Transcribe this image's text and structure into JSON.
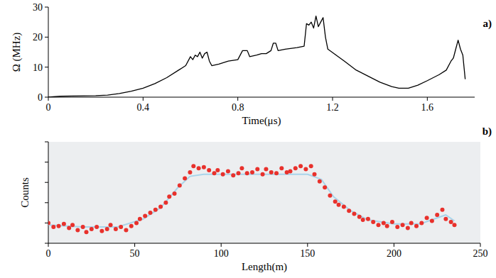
{
  "chart_data": [
    {
      "type": "line",
      "title": "a)",
      "x_label": "Time(μs)",
      "y_label": "Ω (MHz)",
      "x": [
        0,
        0.05,
        0.1,
        0.2,
        0.25,
        0.3,
        0.35,
        0.4,
        0.45,
        0.5,
        0.55,
        0.58,
        0.6,
        0.61,
        0.62,
        0.63,
        0.64,
        0.65,
        0.66,
        0.67,
        0.68,
        0.69,
        0.72,
        0.76,
        0.8,
        0.82,
        0.84,
        0.85,
        0.88,
        0.9,
        0.92,
        0.94,
        0.95,
        0.96,
        0.97,
        1.0,
        1.05,
        1.08,
        1.09,
        1.1,
        1.11,
        1.12,
        1.13,
        1.14,
        1.15,
        1.16,
        1.17,
        1.18,
        1.25,
        1.3,
        1.35,
        1.4,
        1.45,
        1.48,
        1.52,
        1.56,
        1.6,
        1.65,
        1.68,
        1.7,
        1.71,
        1.72,
        1.73,
        1.74,
        1.75,
        1.76
      ],
      "series": [
        {
          "color": "#000000",
          "values": [
            0,
            0.3,
            0.4,
            0.5,
            0.7,
            1.2,
            2,
            3,
            4.5,
            6.5,
            9,
            10.5,
            13.5,
            12.5,
            14,
            13.5,
            15,
            13,
            14.5,
            15,
            12,
            10.5,
            11,
            12,
            12.5,
            15.5,
            15.5,
            13.5,
            14,
            14.5,
            14.5,
            15.5,
            18,
            18,
            15.5,
            16,
            16.5,
            17,
            24.5,
            24,
            25,
            23,
            27,
            23.5,
            25,
            26.5,
            20,
            16,
            12,
            9,
            7,
            5,
            3.5,
            3,
            3,
            4,
            5.5,
            7.5,
            9,
            12,
            13,
            16,
            19,
            16,
            14,
            6
          ]
        }
      ],
      "xlim": [
        0,
        1.8
      ],
      "xticks": [
        0,
        0.4,
        0.8,
        1.2,
        1.6
      ],
      "ylim": [
        0,
        30
      ],
      "yticks": [
        0,
        10,
        20,
        30
      ]
    },
    {
      "type": "scatter",
      "title": "b)",
      "x_label": "Length(m)",
      "y_label": "Counts",
      "tick_labels": "x",
      "series": [
        {
          "type": "scatter",
          "marker": "circle",
          "color": "#e8312c",
          "x": [
            0,
            3,
            6,
            9,
            12,
            14,
            17,
            20,
            22,
            25,
            28,
            31,
            34,
            36,
            39,
            42,
            45,
            48,
            51,
            53,
            56,
            59,
            62,
            65,
            68,
            70,
            73,
            76,
            79,
            82,
            84,
            87,
            90,
            93,
            96,
            98,
            101,
            104,
            107,
            110,
            112,
            115,
            118,
            121,
            124,
            126,
            129,
            132,
            135,
            138,
            140,
            143,
            146,
            149,
            152,
            154,
            157,
            160,
            163,
            166,
            168,
            171,
            174,
            177,
            180,
            182,
            185,
            188,
            191,
            194,
            196,
            199,
            202,
            205,
            208,
            210,
            213,
            216,
            219,
            222,
            225,
            228,
            230,
            233,
            235
          ],
          "values": [
            2.0,
            1.6,
            1.7,
            1.9,
            1.5,
            1.8,
            1.3,
            1.6,
            1.1,
            1.4,
            1.6,
            1.2,
            1.4,
            1.8,
            1.4,
            1.6,
            1.3,
            1.7,
            2.0,
            2.4,
            2.7,
            3.0,
            3.3,
            3.6,
            4.0,
            4.6,
            4.9,
            5.7,
            6.4,
            7.0,
            7.6,
            7.4,
            7.5,
            7.2,
            6.9,
            7.2,
            6.8,
            7.1,
            6.7,
            6.9,
            7.4,
            6.9,
            7.0,
            7.3,
            6.8,
            7.3,
            7.0,
            6.9,
            7.4,
            7.0,
            7.1,
            7.4,
            7.6,
            7.3,
            7.6,
            6.8,
            6.1,
            5.5,
            4.7,
            4.1,
            3.8,
            3.6,
            3.2,
            2.9,
            2.6,
            2.3,
            2.4,
            2.1,
            1.8,
            2.0,
            1.7,
            2.1,
            1.6,
            1.8,
            1.5,
            2.0,
            1.7,
            2.0,
            2.5,
            2.2,
            2.8,
            3.3,
            2.4,
            2.1,
            1.8
          ]
        },
        {
          "type": "line",
          "color": "#a8d4ea",
          "x": [
            0,
            20,
            40,
            55,
            65,
            75,
            82,
            90,
            120,
            150,
            158,
            165,
            175,
            185,
            200,
            215,
            225,
            230,
            235
          ],
          "values": [
            1.8,
            1.6,
            1.6,
            2.4,
            3.5,
            5.5,
            6.6,
            6.8,
            6.8,
            6.8,
            6.3,
            4.6,
            3.2,
            2.3,
            1.9,
            1.9,
            2.5,
            2.8,
            2.2
          ]
        }
      ],
      "xlim": [
        0,
        250
      ],
      "xticks": [
        0,
        50,
        100,
        150,
        200,
        250
      ],
      "ylim": [
        0,
        10
      ],
      "yticks": [
        0,
        2,
        4,
        6,
        8,
        10
      ]
    }
  ]
}
